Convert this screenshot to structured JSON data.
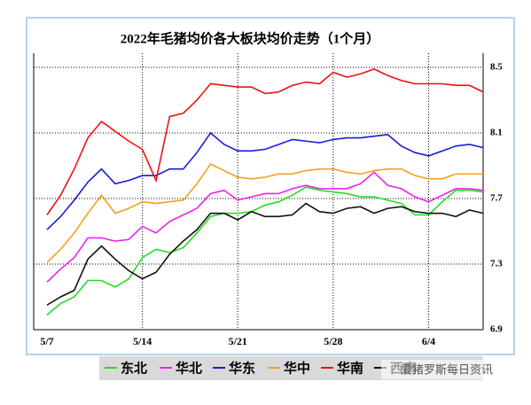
{
  "chart_data": {
    "type": "line",
    "title": "2022年毛猪均价各大板块均价走势（1个月）",
    "categories": [
      "5/7",
      null,
      null,
      null,
      null,
      null,
      null,
      "5/14",
      null,
      null,
      null,
      null,
      null,
      null,
      "5/21",
      null,
      null,
      null,
      null,
      null,
      null,
      "5/28",
      null,
      null,
      null,
      null,
      null,
      null,
      "6/4",
      null,
      null,
      null,
      null
    ],
    "ylim": [
      6.9,
      8.5
    ],
    "yticks": [
      6.9,
      7.3,
      7.7,
      8.1,
      8.5
    ],
    "grid": true,
    "y_axis_side": "right",
    "legend": "bottom",
    "watermark": "爱猪罗斯每日资讯",
    "series": [
      {
        "name": "东北",
        "color": "#22dd22",
        "values": [
          6.99,
          7.06,
          7.1,
          7.2,
          7.2,
          7.16,
          7.21,
          7.34,
          7.39,
          7.37,
          7.4,
          7.49,
          7.59,
          7.61,
          7.61,
          7.62,
          7.66,
          7.68,
          7.72,
          7.77,
          7.75,
          7.74,
          7.73,
          7.71,
          7.71,
          7.69,
          7.67,
          7.6,
          7.6,
          7.68,
          7.75,
          7.75,
          7.74
        ]
      },
      {
        "name": "华北",
        "color": "#ee22ee",
        "values": [
          7.19,
          7.27,
          7.34,
          7.46,
          7.46,
          7.44,
          7.45,
          7.53,
          7.49,
          7.56,
          7.6,
          7.64,
          7.73,
          7.75,
          7.69,
          7.71,
          7.73,
          7.73,
          7.76,
          7.78,
          7.76,
          7.76,
          7.76,
          7.79,
          7.86,
          7.78,
          7.76,
          7.71,
          7.68,
          7.72,
          7.76,
          7.76,
          7.75
        ]
      },
      {
        "name": "华东",
        "color": "#1a1adc",
        "values": [
          7.51,
          7.59,
          7.69,
          7.8,
          7.88,
          7.79,
          7.81,
          7.84,
          7.84,
          7.88,
          7.88,
          7.98,
          8.1,
          8.03,
          7.99,
          7.99,
          8.0,
          8.03,
          8.06,
          8.05,
          8.04,
          8.06,
          8.07,
          8.07,
          8.08,
          8.09,
          8.02,
          7.98,
          7.96,
          7.99,
          8.02,
          8.03,
          8.01
        ]
      },
      {
        "name": "华中",
        "color": "#f5a020",
        "values": [
          7.31,
          7.39,
          7.49,
          7.61,
          7.72,
          7.61,
          7.64,
          7.68,
          7.67,
          7.68,
          7.69,
          7.79,
          7.91,
          7.87,
          7.83,
          7.82,
          7.83,
          7.85,
          7.85,
          7.87,
          7.88,
          7.88,
          7.86,
          7.85,
          7.87,
          7.88,
          7.88,
          7.84,
          7.82,
          7.82,
          7.85,
          7.85,
          7.85
        ]
      },
      {
        "name": "华南",
        "color": "#ee1111",
        "values": [
          7.6,
          7.72,
          7.88,
          8.07,
          8.17,
          8.11,
          8.05,
          8.0,
          7.81,
          8.2,
          8.22,
          8.3,
          8.4,
          8.39,
          8.38,
          8.38,
          8.34,
          8.35,
          8.39,
          8.41,
          8.4,
          8.47,
          8.44,
          8.46,
          8.49,
          8.45,
          8.42,
          8.4,
          8.4,
          8.4,
          8.39,
          8.39,
          8.35
        ]
      },
      {
        "name": "西南",
        "color": "#111111",
        "values": [
          7.05,
          7.1,
          7.14,
          7.33,
          7.41,
          7.33,
          7.26,
          7.21,
          7.25,
          7.36,
          7.44,
          7.51,
          7.61,
          7.61,
          7.57,
          7.62,
          7.59,
          7.59,
          7.6,
          7.67,
          7.62,
          7.61,
          7.64,
          7.65,
          7.61,
          7.64,
          7.65,
          7.62,
          7.61,
          7.61,
          7.59,
          7.63,
          7.61
        ]
      }
    ]
  }
}
